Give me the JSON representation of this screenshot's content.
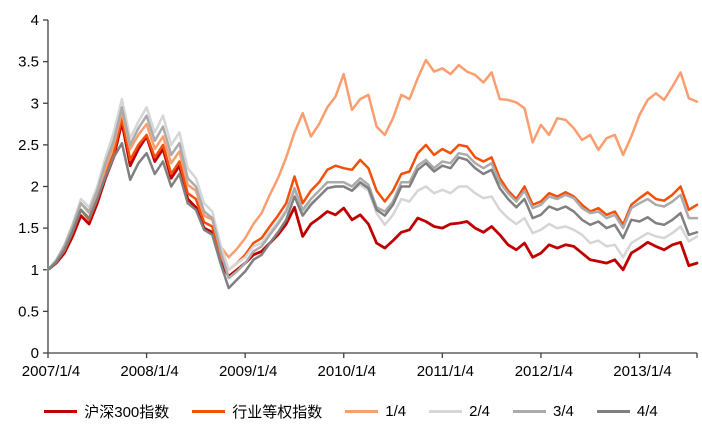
{
  "chart_data": {
    "type": "line",
    "title": "",
    "xlabel": "",
    "ylabel": "",
    "grid": false,
    "legend_position": "bottom",
    "ylim": [
      0,
      4
    ],
    "y_tick_labels": [
      "0",
      "0.5",
      "1",
      "1.5",
      "2",
      "2.5",
      "3",
      "3.5",
      "4"
    ],
    "y_tick_values": [
      0,
      0.5,
      1,
      1.5,
      2,
      2.5,
      3,
      3.5,
      4
    ],
    "x_tick_labels": [
      "2007/1/4",
      "2008/1/4",
      "2009/1/4",
      "2010/1/4",
      "2011/1/4",
      "2012/1/4",
      "2013/1/4"
    ],
    "x_tick_indices": [
      0,
      12,
      24,
      36,
      48,
      60,
      72
    ],
    "x_description": "monthly points from 2007/1 to 2013/8, all series indexed to 1.0 at 2007/1/4",
    "axis_color": "#404040",
    "series": [
      {
        "name": "沪深300指数",
        "color": "#C00000",
        "width": 2.8,
        "values": [
          1.0,
          1.08,
          1.2,
          1.4,
          1.65,
          1.55,
          1.8,
          2.1,
          2.35,
          2.77,
          2.25,
          2.45,
          2.6,
          2.3,
          2.45,
          2.1,
          2.25,
          1.85,
          1.75,
          1.5,
          1.45,
          1.1,
          0.92,
          1.0,
          1.08,
          1.18,
          1.22,
          1.32,
          1.42,
          1.55,
          1.75,
          1.4,
          1.55,
          1.62,
          1.7,
          1.66,
          1.74,
          1.6,
          1.66,
          1.55,
          1.32,
          1.26,
          1.35,
          1.45,
          1.48,
          1.62,
          1.58,
          1.52,
          1.5,
          1.55,
          1.56,
          1.58,
          1.5,
          1.45,
          1.52,
          1.42,
          1.3,
          1.24,
          1.32,
          1.15,
          1.2,
          1.3,
          1.26,
          1.3,
          1.28,
          1.2,
          1.12,
          1.1,
          1.08,
          1.12,
          1.0,
          1.2,
          1.26,
          1.33,
          1.28,
          1.24,
          1.3,
          1.33,
          1.05,
          1.08
        ]
      },
      {
        "name": "行业等权指数",
        "color": "#F4500A",
        "width": 2.5,
        "values": [
          1.0,
          1.1,
          1.23,
          1.45,
          1.72,
          1.6,
          1.85,
          2.15,
          2.4,
          2.82,
          2.32,
          2.5,
          2.62,
          2.35,
          2.5,
          2.15,
          2.3,
          1.92,
          1.85,
          1.57,
          1.52,
          1.15,
          1.0,
          1.08,
          1.18,
          1.32,
          1.38,
          1.52,
          1.65,
          1.8,
          2.12,
          1.8,
          1.95,
          2.05,
          2.2,
          2.25,
          2.22,
          2.2,
          2.32,
          2.22,
          1.95,
          1.82,
          1.95,
          2.15,
          2.18,
          2.4,
          2.5,
          2.38,
          2.45,
          2.4,
          2.5,
          2.48,
          2.35,
          2.3,
          2.35,
          2.1,
          1.95,
          1.85,
          2.0,
          1.78,
          1.82,
          1.92,
          1.88,
          1.93,
          1.88,
          1.78,
          1.7,
          1.74,
          1.66,
          1.7,
          1.54,
          1.78,
          1.86,
          1.93,
          1.85,
          1.83,
          1.9,
          2.0,
          1.72,
          1.78
        ]
      },
      {
        "name": "1/4",
        "color": "#FA9E70",
        "width": 2.5,
        "values": [
          1.0,
          1.1,
          1.25,
          1.5,
          1.8,
          1.68,
          1.92,
          2.22,
          2.5,
          2.9,
          2.45,
          2.62,
          2.75,
          2.45,
          2.6,
          2.28,
          2.42,
          2.02,
          1.95,
          1.65,
          1.6,
          1.28,
          1.15,
          1.25,
          1.38,
          1.55,
          1.68,
          1.9,
          2.1,
          2.35,
          2.65,
          2.88,
          2.6,
          2.75,
          2.95,
          3.08,
          3.35,
          2.92,
          3.05,
          3.1,
          2.72,
          2.62,
          2.82,
          3.1,
          3.05,
          3.3,
          3.52,
          3.38,
          3.42,
          3.35,
          3.46,
          3.38,
          3.34,
          3.25,
          3.37,
          3.05,
          3.04,
          3.01,
          2.94,
          2.53,
          2.74,
          2.62,
          2.82,
          2.8,
          2.7,
          2.56,
          2.62,
          2.44,
          2.58,
          2.62,
          2.38,
          2.6,
          2.86,
          3.04,
          3.12,
          3.04,
          3.2,
          3.37,
          3.06,
          3.02
        ]
      },
      {
        "name": "2/4",
        "color": "#D6D6D6",
        "width": 2.5,
        "values": [
          1.0,
          1.12,
          1.3,
          1.55,
          1.85,
          1.75,
          2.0,
          2.35,
          2.65,
          3.05,
          2.58,
          2.78,
          2.95,
          2.65,
          2.85,
          2.5,
          2.65,
          2.22,
          2.1,
          1.8,
          1.7,
          1.3,
          1.0,
          1.08,
          1.15,
          1.28,
          1.32,
          1.45,
          1.58,
          1.72,
          1.95,
          1.7,
          1.8,
          1.88,
          1.98,
          2.0,
          2.0,
          1.95,
          2.02,
          1.95,
          1.68,
          1.54,
          1.66,
          1.85,
          1.82,
          1.95,
          2.0,
          1.92,
          1.96,
          1.92,
          2.0,
          2.0,
          1.92,
          1.86,
          1.88,
          1.72,
          1.62,
          1.55,
          1.62,
          1.44,
          1.48,
          1.55,
          1.5,
          1.52,
          1.48,
          1.42,
          1.32,
          1.35,
          1.28,
          1.3,
          1.15,
          1.32,
          1.38,
          1.44,
          1.4,
          1.38,
          1.44,
          1.52,
          1.34,
          1.4
        ]
      },
      {
        "name": "3/4",
        "color": "#ABABAB",
        "width": 2.5,
        "values": [
          1.0,
          1.11,
          1.28,
          1.52,
          1.8,
          1.7,
          1.95,
          2.28,
          2.55,
          2.95,
          2.5,
          2.7,
          2.85,
          2.55,
          2.72,
          2.38,
          2.52,
          2.1,
          2.0,
          1.7,
          1.62,
          1.22,
          0.9,
          0.98,
          1.08,
          1.22,
          1.28,
          1.42,
          1.55,
          1.7,
          1.98,
          1.72,
          1.85,
          1.95,
          2.05,
          2.05,
          2.05,
          2.0,
          2.1,
          2.02,
          1.75,
          1.7,
          1.82,
          2.05,
          2.05,
          2.25,
          2.32,
          2.22,
          2.3,
          2.28,
          2.4,
          2.38,
          2.28,
          2.22,
          2.28,
          2.05,
          1.92,
          1.82,
          1.95,
          1.74,
          1.78,
          1.88,
          1.85,
          1.9,
          1.86,
          1.74,
          1.68,
          1.7,
          1.62,
          1.66,
          1.5,
          1.74,
          1.8,
          1.85,
          1.78,
          1.76,
          1.82,
          1.9,
          1.62,
          1.62
        ]
      },
      {
        "name": "4/4",
        "color": "#808080",
        "width": 2.5,
        "values": [
          1.0,
          1.09,
          1.24,
          1.46,
          1.72,
          1.62,
          1.85,
          2.12,
          2.35,
          2.52,
          2.08,
          2.28,
          2.4,
          2.15,
          2.3,
          2.0,
          2.15,
          1.8,
          1.72,
          1.48,
          1.42,
          1.08,
          0.78,
          0.88,
          0.98,
          1.12,
          1.18,
          1.32,
          1.45,
          1.6,
          1.88,
          1.65,
          1.78,
          1.88,
          1.98,
          2.0,
          2.0,
          1.95,
          2.05,
          1.98,
          1.72,
          1.65,
          1.78,
          2.0,
          2.0,
          2.2,
          2.28,
          2.18,
          2.25,
          2.22,
          2.35,
          2.32,
          2.22,
          2.15,
          2.2,
          1.98,
          1.85,
          1.75,
          1.85,
          1.62,
          1.66,
          1.76,
          1.72,
          1.76,
          1.7,
          1.6,
          1.54,
          1.58,
          1.5,
          1.54,
          1.38,
          1.6,
          1.58,
          1.63,
          1.56,
          1.54,
          1.6,
          1.68,
          1.42,
          1.45
        ]
      }
    ]
  }
}
